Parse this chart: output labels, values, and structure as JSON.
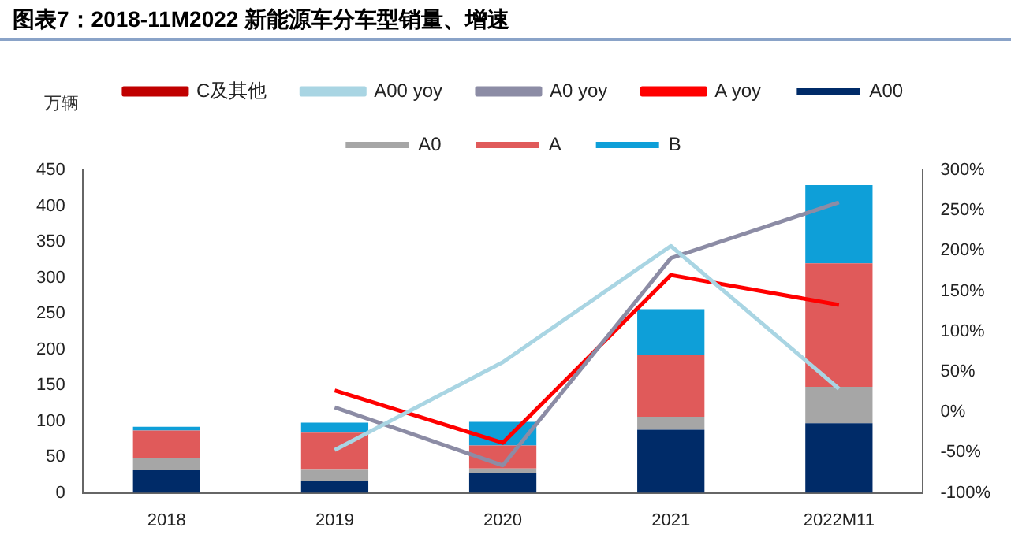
{
  "chart_data": {
    "type": "bar",
    "title": "图表7：2018-11M2022 新能源车分车型销量、增速",
    "ylabel": "万辆",
    "categories": [
      "2018",
      "2019",
      "2020",
      "2021",
      "2022M11"
    ],
    "stacked": true,
    "legend": "top",
    "grid": false,
    "ylim": [
      0,
      450
    ],
    "yticks": [
      0,
      50,
      100,
      150,
      200,
      250,
      300,
      350,
      400,
      450
    ],
    "y2lim": [
      -100,
      300
    ],
    "y2ticks": [
      {
        "value": -100,
        "label": "-100%"
      },
      {
        "value": -50,
        "label": "-50%"
      },
      {
        "value": 0,
        "label": "0%"
      },
      {
        "value": 50,
        "label": "50%"
      },
      {
        "value": 100,
        "label": "100%"
      },
      {
        "value": 150,
        "label": "150%"
      },
      {
        "value": 200,
        "label": "200%"
      },
      {
        "value": 250,
        "label": "250%"
      },
      {
        "value": 300,
        "label": "300%"
      }
    ],
    "series": [
      {
        "name": "A00",
        "color": "#002b68",
        "values": [
          32,
          17,
          28,
          88,
          97
        ]
      },
      {
        "name": "A0",
        "color": "#a6a6a6",
        "values": [
          16,
          16,
          6,
          18,
          51
        ]
      },
      {
        "name": "A",
        "color": "#e05a5a",
        "values": [
          39,
          51,
          32,
          87,
          172
        ]
      },
      {
        "name": "B",
        "color": "#0e9fd8",
        "values": [
          5,
          14,
          33,
          63,
          109
        ]
      },
      {
        "name": "C及其他",
        "type": "line",
        "axis": "y2",
        "color": "#c00000",
        "values": [
          null,
          null,
          null,
          null,
          null
        ]
      },
      {
        "name": "A00 yoy",
        "type": "line",
        "axis": "y2",
        "color": "#a9d5e3",
        "values": [
          null,
          -47,
          62,
          206,
          29
        ]
      },
      {
        "name": "A0 yoy",
        "type": "line",
        "axis": "y2",
        "color": "#8c8ca5",
        "values": [
          null,
          6,
          -66,
          191,
          260
        ]
      },
      {
        "name": "A yoy",
        "type": "line",
        "axis": "y2",
        "color": "#ff0000",
        "values": [
          null,
          27,
          -38,
          170,
          133
        ]
      }
    ]
  }
}
